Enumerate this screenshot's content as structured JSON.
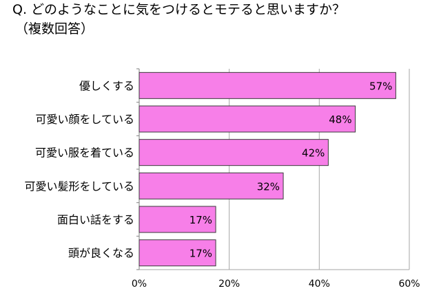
{
  "header": {
    "title": "Q. どのようなことに気をつけるとモテると思いますか？",
    "subtitle": "（複数回答）"
  },
  "chart_data": {
    "type": "bar",
    "orientation": "horizontal",
    "title": "Q. どのようなことに気をつけるとモテると思いますか？",
    "subtitle": "（複数回答）",
    "categories": [
      "優しくする",
      "可愛い顔をしている",
      "可愛い服を着ている",
      "可愛い髪形をしている",
      "面白い話をする",
      "頭が良くなる"
    ],
    "values": [
      57,
      48,
      42,
      32,
      17,
      17
    ],
    "value_labels": [
      "57%",
      "48%",
      "42%",
      "32%",
      "17%",
      "17%"
    ],
    "xlim": [
      0,
      60
    ],
    "x_ticks": [
      0,
      20,
      40,
      60
    ],
    "x_tick_labels": [
      "0%",
      "20%",
      "40%",
      "60%"
    ],
    "grid": "vertical",
    "legend": "none",
    "bar_color": "#f77fe8",
    "bar_edge_color": "#3a3a3a"
  }
}
